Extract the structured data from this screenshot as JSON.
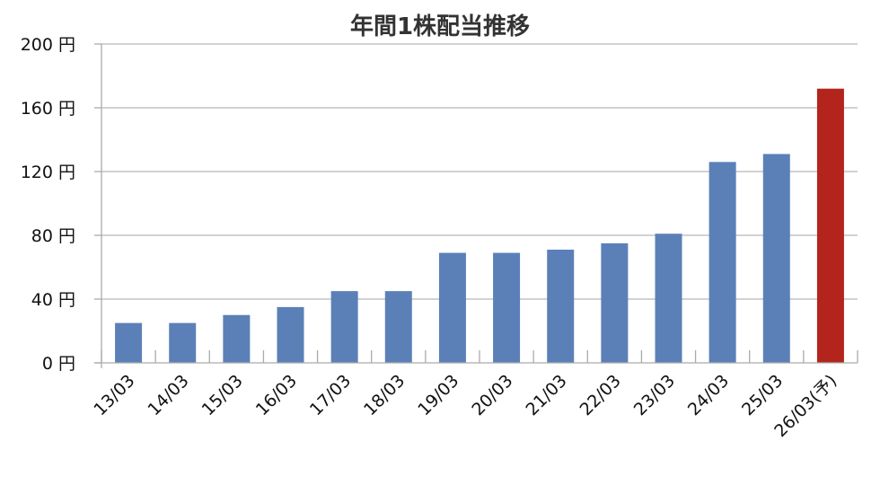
{
  "chart_data": {
    "type": "bar",
    "title": "年間1株配当推移",
    "xlabel": "",
    "ylabel": "",
    "categories": [
      "13/03",
      "14/03",
      "15/03",
      "16/03",
      "17/03",
      "18/03",
      "19/03",
      "20/03",
      "21/03",
      "22/03",
      "23/03",
      "24/03",
      "25/03",
      "26/03(予)"
    ],
    "series": [
      {
        "values": [
          25,
          25,
          30,
          35,
          45,
          45,
          69,
          69,
          71,
          75,
          81,
          126,
          131,
          172
        ]
      }
    ],
    "ylim": [
      0,
      200
    ],
    "yticks": [
      0,
      40,
      80,
      120,
      160,
      200
    ],
    "ytick_labels": [
      "0 円",
      "40 円",
      "80 円",
      "120 円",
      "160 円",
      "200 円"
    ],
    "grid": true,
    "legend": "none",
    "colors": {
      "bar": "#5b80b8",
      "forecast_bar": "#b3251c",
      "grid": "#b8b8b8",
      "axis": "#aaaaaa"
    },
    "forecast_index": 13
  }
}
